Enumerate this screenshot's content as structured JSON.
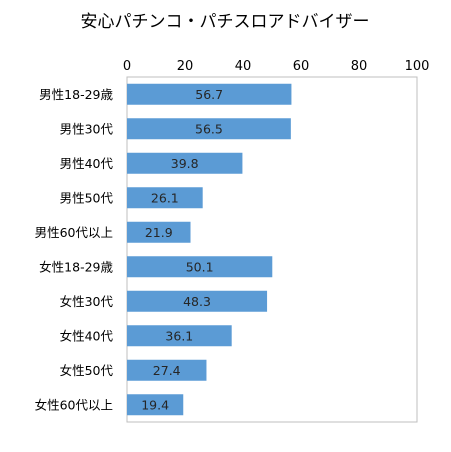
{
  "chart_data": {
    "type": "bar",
    "orientation": "horizontal",
    "title": "安心パチンコ・パチスロアドバイザー",
    "xlabel": "",
    "ylabel": "",
    "xlim": [
      0,
      100
    ],
    "x_ticks": [
      0,
      20,
      40,
      60,
      80,
      100
    ],
    "x_axis_position": "top",
    "grid": false,
    "legend": "none",
    "bar_color": "#5B9BD5",
    "categories": [
      "男性18-29歳",
      "男性30代",
      "男性40代",
      "男性50代",
      "男性60代以上",
      "女性18-29歳",
      "女性30代",
      "女性40代",
      "女性50代",
      "女性60代以上"
    ],
    "values": [
      56.7,
      56.5,
      39.8,
      26.1,
      21.9,
      50.1,
      48.3,
      36.1,
      27.4,
      19.4
    ],
    "data_labels": [
      "56.7",
      "56.5",
      "39.8",
      "26.1",
      "21.9",
      "50.1",
      "48.3",
      "36.1",
      "27.4",
      "19.4"
    ]
  }
}
